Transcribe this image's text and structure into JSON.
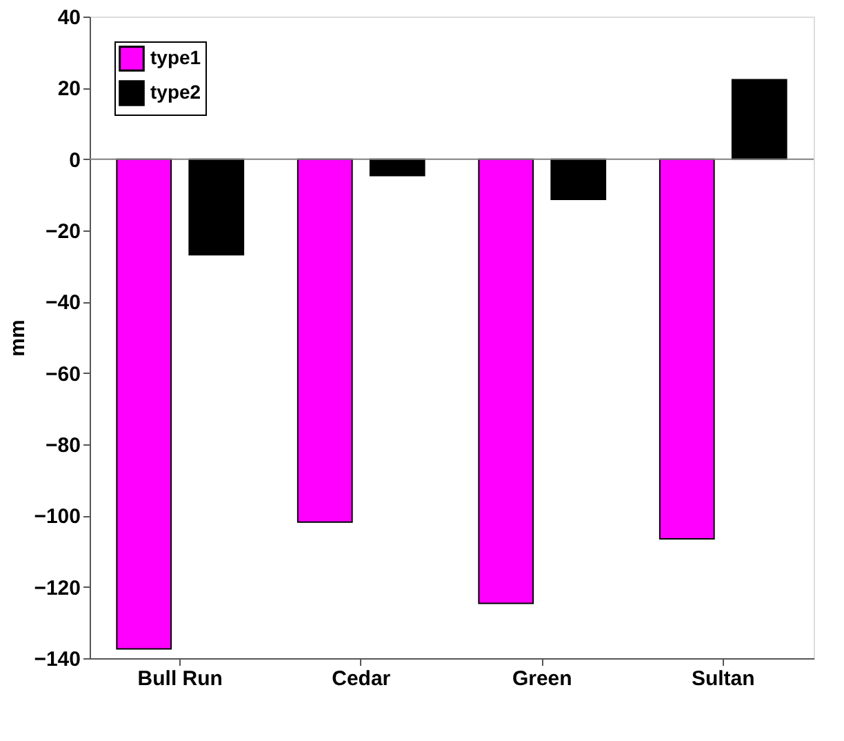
{
  "chart_data": {
    "type": "bar",
    "ylabel": "mm",
    "categories": [
      "Bull Run",
      "Cedar",
      "Green",
      "Sultan"
    ],
    "series": [
      {
        "name": "type1",
        "color": "#ff00ff",
        "values": [
          -137.4,
          -101.8,
          -124.6,
          -106.5
        ]
      },
      {
        "name": "type2",
        "color": "#000000",
        "values": [
          -26.8,
          -4.6,
          -11.3,
          22.3
        ]
      }
    ],
    "ylim": [
      -140,
      40
    ],
    "yticks": [
      -140,
      -120,
      -100,
      -80,
      -60,
      -40,
      -20,
      0,
      20,
      40
    ],
    "ref_lines": [
      {
        "axis": "y",
        "value": 0,
        "color": "#808080"
      }
    ],
    "grid": false,
    "legend": "top left"
  }
}
